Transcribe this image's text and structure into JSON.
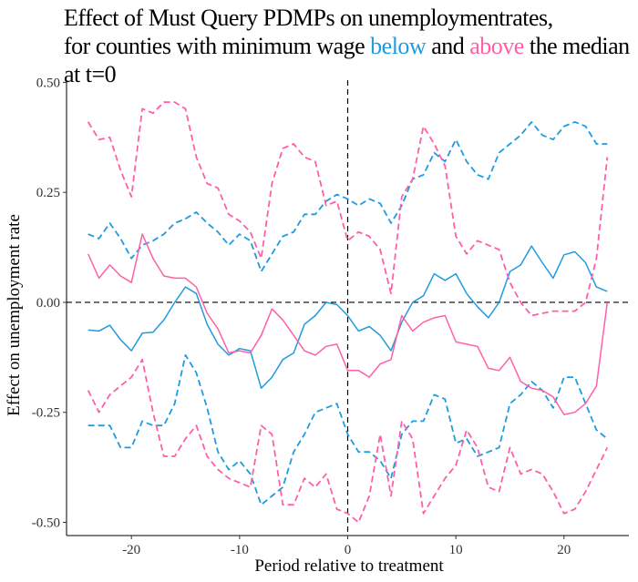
{
  "chart_data": {
    "type": "line",
    "title_parts": [
      {
        "text": "Effect of Must Query PDMPs on unemploymentrates,",
        "color": "#000000",
        "newline": true
      },
      {
        "text": "for counties with minimum wage ",
        "color": "#000000"
      },
      {
        "text": "below",
        "color": "#1f9be0"
      },
      {
        "text": " and ",
        "color": "#000000"
      },
      {
        "text": "above",
        "color": "#ff5fa8"
      },
      {
        "text": " the median",
        "color": "#000000",
        "newline": true
      },
      {
        "text": "at t=0",
        "color": "#000000"
      }
    ],
    "xlabel": "Period relative to treatment",
    "ylabel": "Effect on unemployment rate",
    "xlim": [
      -26,
      26
    ],
    "ylim": [
      -0.53,
      0.505
    ],
    "xticks": [
      -20,
      -10,
      0,
      10,
      20
    ],
    "xtick_labels": [
      "-20",
      "-10",
      "0",
      "10",
      "20"
    ],
    "yticks": [
      -0.5,
      -0.25,
      0,
      0.25,
      0.5
    ],
    "ytick_labels": [
      "-0.50",
      "-0.25",
      "0.00",
      "0.25",
      "0.50"
    ],
    "reference_lines": {
      "horizontal_y": 0,
      "vertical_x": 0
    },
    "colors": {
      "below": "#1f9be0",
      "above": "#ff5fa8"
    },
    "x": [
      -24,
      -23,
      -22,
      -21,
      -20,
      -19,
      -18,
      -17,
      -16,
      -15,
      -14,
      -13,
      -12,
      -11,
      -10,
      -9,
      -8,
      -7,
      -6,
      -5,
      -4,
      -3,
      -2,
      -1,
      0,
      1,
      2,
      3,
      4,
      5,
      6,
      7,
      8,
      9,
      10,
      11,
      12,
      13,
      14,
      15,
      16,
      17,
      18,
      19,
      20,
      21,
      22,
      23,
      24
    ],
    "series": [
      {
        "group": "below",
        "kind": "estimate",
        "values": [
          -0.063,
          -0.065,
          -0.052,
          -0.085,
          -0.11,
          -0.07,
          -0.068,
          -0.04,
          0.0,
          0.035,
          0.02,
          -0.05,
          -0.095,
          -0.12,
          -0.105,
          -0.11,
          -0.195,
          -0.17,
          -0.13,
          -0.115,
          -0.05,
          -0.03,
          0.0,
          -0.005,
          -0.03,
          -0.065,
          -0.055,
          -0.075,
          -0.11,
          -0.045,
          0.0,
          0.015,
          0.065,
          0.05,
          0.065,
          0.02,
          -0.01,
          -0.035,
          0.0,
          0.07,
          0.085,
          0.128,
          0.09,
          0.055,
          0.108,
          0.115,
          0.09,
          0.035,
          0.025
        ]
      },
      {
        "group": "below",
        "kind": "upper",
        "values": [
          0.155,
          0.145,
          0.18,
          0.145,
          0.1,
          0.13,
          0.14,
          0.155,
          0.18,
          0.19,
          0.205,
          0.18,
          0.16,
          0.13,
          0.155,
          0.14,
          0.07,
          0.11,
          0.15,
          0.16,
          0.2,
          0.2,
          0.23,
          0.245,
          0.235,
          0.22,
          0.235,
          0.225,
          0.18,
          0.22,
          0.28,
          0.29,
          0.34,
          0.32,
          0.37,
          0.32,
          0.29,
          0.28,
          0.34,
          0.36,
          0.38,
          0.41,
          0.38,
          0.37,
          0.4,
          0.41,
          0.4,
          0.36,
          0.36
        ]
      },
      {
        "group": "below",
        "kind": "lower",
        "values": [
          -0.28,
          -0.28,
          -0.28,
          -0.33,
          -0.33,
          -0.27,
          -0.28,
          -0.28,
          -0.23,
          -0.12,
          -0.16,
          -0.24,
          -0.34,
          -0.38,
          -0.36,
          -0.39,
          -0.46,
          -0.44,
          -0.42,
          -0.34,
          -0.3,
          -0.25,
          -0.24,
          -0.23,
          -0.3,
          -0.34,
          -0.34,
          -0.36,
          -0.4,
          -0.3,
          -0.27,
          -0.27,
          -0.21,
          -0.22,
          -0.32,
          -0.31,
          -0.35,
          -0.34,
          -0.33,
          -0.23,
          -0.21,
          -0.18,
          -0.2,
          -0.24,
          -0.17,
          -0.17,
          -0.23,
          -0.29,
          -0.31
        ]
      },
      {
        "group": "above",
        "kind": "estimate",
        "values": [
          0.11,
          0.055,
          0.085,
          0.06,
          0.045,
          0.155,
          0.1,
          0.06,
          0.055,
          0.055,
          0.035,
          -0.025,
          -0.06,
          -0.115,
          -0.11,
          -0.115,
          -0.075,
          -0.015,
          -0.04,
          -0.075,
          -0.11,
          -0.12,
          -0.1,
          -0.095,
          -0.155,
          -0.155,
          -0.17,
          -0.14,
          -0.13,
          -0.03,
          -0.065,
          -0.045,
          -0.035,
          -0.03,
          -0.09,
          -0.095,
          -0.1,
          -0.15,
          -0.155,
          -0.125,
          -0.18,
          -0.195,
          -0.2,
          -0.215,
          -0.255,
          -0.25,
          -0.23,
          -0.19,
          0.0
        ]
      },
      {
        "group": "above",
        "kind": "upper",
        "values": [
          0.41,
          0.37,
          0.375,
          0.3,
          0.24,
          0.44,
          0.43,
          0.455,
          0.455,
          0.44,
          0.33,
          0.27,
          0.26,
          0.2,
          0.185,
          0.16,
          0.1,
          0.27,
          0.35,
          0.36,
          0.33,
          0.32,
          0.22,
          0.23,
          0.14,
          0.16,
          0.15,
          0.12,
          0.02,
          0.24,
          0.28,
          0.4,
          0.36,
          0.31,
          0.15,
          0.11,
          0.14,
          0.13,
          0.12,
          0.045,
          0.0,
          -0.03,
          -0.025,
          -0.02,
          -0.02,
          -0.02,
          0.0,
          0.1,
          0.33
        ]
      },
      {
        "group": "above",
        "kind": "lower",
        "values": [
          -0.2,
          -0.25,
          -0.21,
          -0.19,
          -0.17,
          -0.13,
          -0.25,
          -0.35,
          -0.35,
          -0.31,
          -0.28,
          -0.35,
          -0.38,
          -0.4,
          -0.41,
          -0.42,
          -0.28,
          -0.3,
          -0.46,
          -0.46,
          -0.4,
          -0.42,
          -0.39,
          -0.47,
          -0.48,
          -0.5,
          -0.44,
          -0.3,
          -0.44,
          -0.27,
          -0.31,
          -0.48,
          -0.44,
          -0.4,
          -0.37,
          -0.29,
          -0.33,
          -0.42,
          -0.43,
          -0.33,
          -0.39,
          -0.38,
          -0.39,
          -0.43,
          -0.48,
          -0.47,
          -0.43,
          -0.38,
          -0.33
        ]
      }
    ]
  }
}
